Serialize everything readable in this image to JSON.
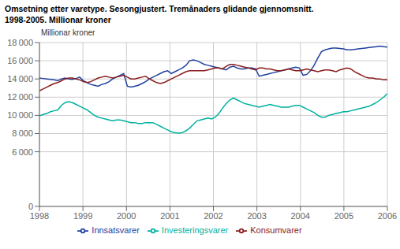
{
  "chart_data": {
    "type": "line",
    "title": "Omsetning etter varetype. Sesongjustert. Tremånaders glidande gjennomsnitt.",
    "subtitle": "1998-2005. Millionar kroner",
    "y_label": "Millionar kroner",
    "x": [
      1998,
      1998.0842,
      1998.1684,
      1998.2526,
      1998.3368,
      1998.4211,
      1998.5053,
      1998.5895,
      1998.6737,
      1998.7579,
      1998.8421,
      1998.9263,
      1999.0105,
      1999.0947,
      1999.1789,
      1999.2632,
      1999.3474,
      1999.4316,
      1999.5158,
      1999.6,
      1999.6842,
      1999.7684,
      1999.8526,
      1999.9368,
      2000.0211,
      2000.1053,
      2000.1895,
      2000.2737,
      2000.3579,
      2000.4421,
      2000.5263,
      2000.6105,
      2000.6947,
      2000.7789,
      2000.8632,
      2000.9474,
      2001.0316,
      2001.1158,
      2001.2,
      2001.2842,
      2001.3684,
      2001.4526,
      2001.5368,
      2001.6211,
      2001.7053,
      2001.7895,
      2001.8737,
      2001.9579,
      2002.0421,
      2002.1263,
      2002.2105,
      2002.2947,
      2002.3789,
      2002.4632,
      2002.5474,
      2002.6316,
      2002.7158,
      2002.8,
      2002.8842,
      2002.9684,
      2003.0526,
      2003.1368,
      2003.2211,
      2003.3053,
      2003.3895,
      2003.4737,
      2003.5579,
      2003.6421,
      2003.7263,
      2003.8105,
      2003.8947,
      2003.9789,
      2004.0632,
      2004.1474,
      2004.2316,
      2004.3158,
      2004.4,
      2004.4842,
      2004.5684,
      2004.6526,
      2004.7368,
      2004.8211,
      2004.9053,
      2004.9895,
      2005.0737,
      2005.1579,
      2005.2421,
      2005.3263,
      2005.4105,
      2005.4947,
      2005.5789,
      2005.6632,
      2005.7474,
      2005.8316,
      2005.9158,
      2006
    ],
    "xlim": [
      1998,
      2006
    ],
    "xticks": [
      1998,
      1999,
      2000,
      2001,
      2002,
      2003,
      2004,
      2005,
      2006
    ],
    "ylim": [
      0,
      18000
    ],
    "yticks": [
      0,
      {
        "value": 6000,
        "label": "6 000"
      },
      {
        "value": 8000,
        "label": "8 000"
      },
      {
        "value": 10000,
        "label": "10 000"
      },
      {
        "value": 12000,
        "label": "12 000"
      },
      {
        "value": 14000,
        "label": "14 000"
      },
      {
        "value": 16000,
        "label": "16 000"
      },
      {
        "value": 18000,
        "label": "18 000"
      }
    ],
    "grid": true,
    "legend": "bottom",
    "series": [
      {
        "name": "Innsatsvarer",
        "color": "#2040a0",
        "values": [
          14100,
          14050,
          14000,
          13950,
          13900,
          13800,
          14000,
          14100,
          14000,
          13950,
          14050,
          14200,
          13800,
          13600,
          13400,
          13300,
          13200,
          13400,
          13500,
          13700,
          14000,
          14200,
          14400,
          14600,
          13200,
          13100,
          13200,
          13300,
          13500,
          13700,
          14000,
          14200,
          14400,
          14600,
          14800,
          14900,
          14600,
          14800,
          15000,
          15200,
          15500,
          16000,
          16100,
          16000,
          15800,
          15600,
          15500,
          15400,
          15300,
          15200,
          15100,
          15000,
          15300,
          15400,
          15200,
          15100,
          15100,
          15200,
          15200,
          15100,
          14300,
          14400,
          14500,
          14600,
          14700,
          14800,
          14900,
          15000,
          15100,
          15200,
          15300,
          15200,
          14400,
          14500,
          14900,
          15500,
          16300,
          17000,
          17200,
          17300,
          17400,
          17400,
          17350,
          17300,
          17200,
          17200,
          17250,
          17300,
          17350,
          17400,
          17450,
          17500,
          17550,
          17600,
          17550,
          17500
        ]
      },
      {
        "name": "Investeringsvarer",
        "color": "#00b0a0",
        "values": [
          9950,
          10100,
          10200,
          10400,
          10500,
          10600,
          11100,
          11400,
          11500,
          11400,
          11200,
          11000,
          10800,
          10600,
          10300,
          10000,
          9800,
          9700,
          9600,
          9500,
          9400,
          9500,
          9500,
          9400,
          9300,
          9200,
          9200,
          9100,
          9100,
          9200,
          9200,
          9200,
          9000,
          8800,
          8600,
          8400,
          8200,
          8100,
          8050,
          8100,
          8300,
          8600,
          9000,
          9400,
          9500,
          9600,
          9700,
          9600,
          9800,
          10200,
          10800,
          11300,
          11700,
          11900,
          11700,
          11500,
          11300,
          11200,
          11100,
          11000,
          10900,
          11000,
          11100,
          11200,
          11100,
          11000,
          10900,
          10900,
          10900,
          11000,
          11100,
          11100,
          10900,
          10700,
          10500,
          10300,
          10000,
          9800,
          9800,
          10000,
          10100,
          10200,
          10300,
          10400,
          10400,
          10500,
          10600,
          10700,
          10800,
          10900,
          11000,
          11200,
          11400,
          11700,
          12000,
          12400
        ]
      },
      {
        "name": "Konsumvarer",
        "color": "#8b1a1a",
        "values": [
          12700,
          12900,
          13100,
          13300,
          13500,
          13600,
          13800,
          14000,
          14100,
          14100,
          14000,
          13900,
          13700,
          13600,
          13700,
          13900,
          14100,
          14200,
          14300,
          14200,
          14100,
          14200,
          14300,
          14400,
          14200,
          14000,
          14000,
          14100,
          14200,
          14300,
          14000,
          13800,
          13600,
          13500,
          13600,
          13800,
          14000,
          14200,
          14400,
          14600,
          14800,
          14900,
          14900,
          14900,
          14900,
          14900,
          15000,
          15100,
          15200,
          15200,
          15100,
          15400,
          15600,
          15600,
          15500,
          15400,
          15300,
          15200,
          15100,
          15000,
          15200,
          15200,
          15100,
          15100,
          15000,
          14900,
          14900,
          15000,
          15100,
          15000,
          14900,
          14900,
          15000,
          15100,
          15000,
          14900,
          14800,
          14900,
          15000,
          15000,
          14900,
          14800,
          15000,
          15100,
          15200,
          15100,
          14800,
          14600,
          14400,
          14200,
          14100,
          14100,
          14000,
          14000,
          13900,
          13900
        ]
      }
    ]
  }
}
